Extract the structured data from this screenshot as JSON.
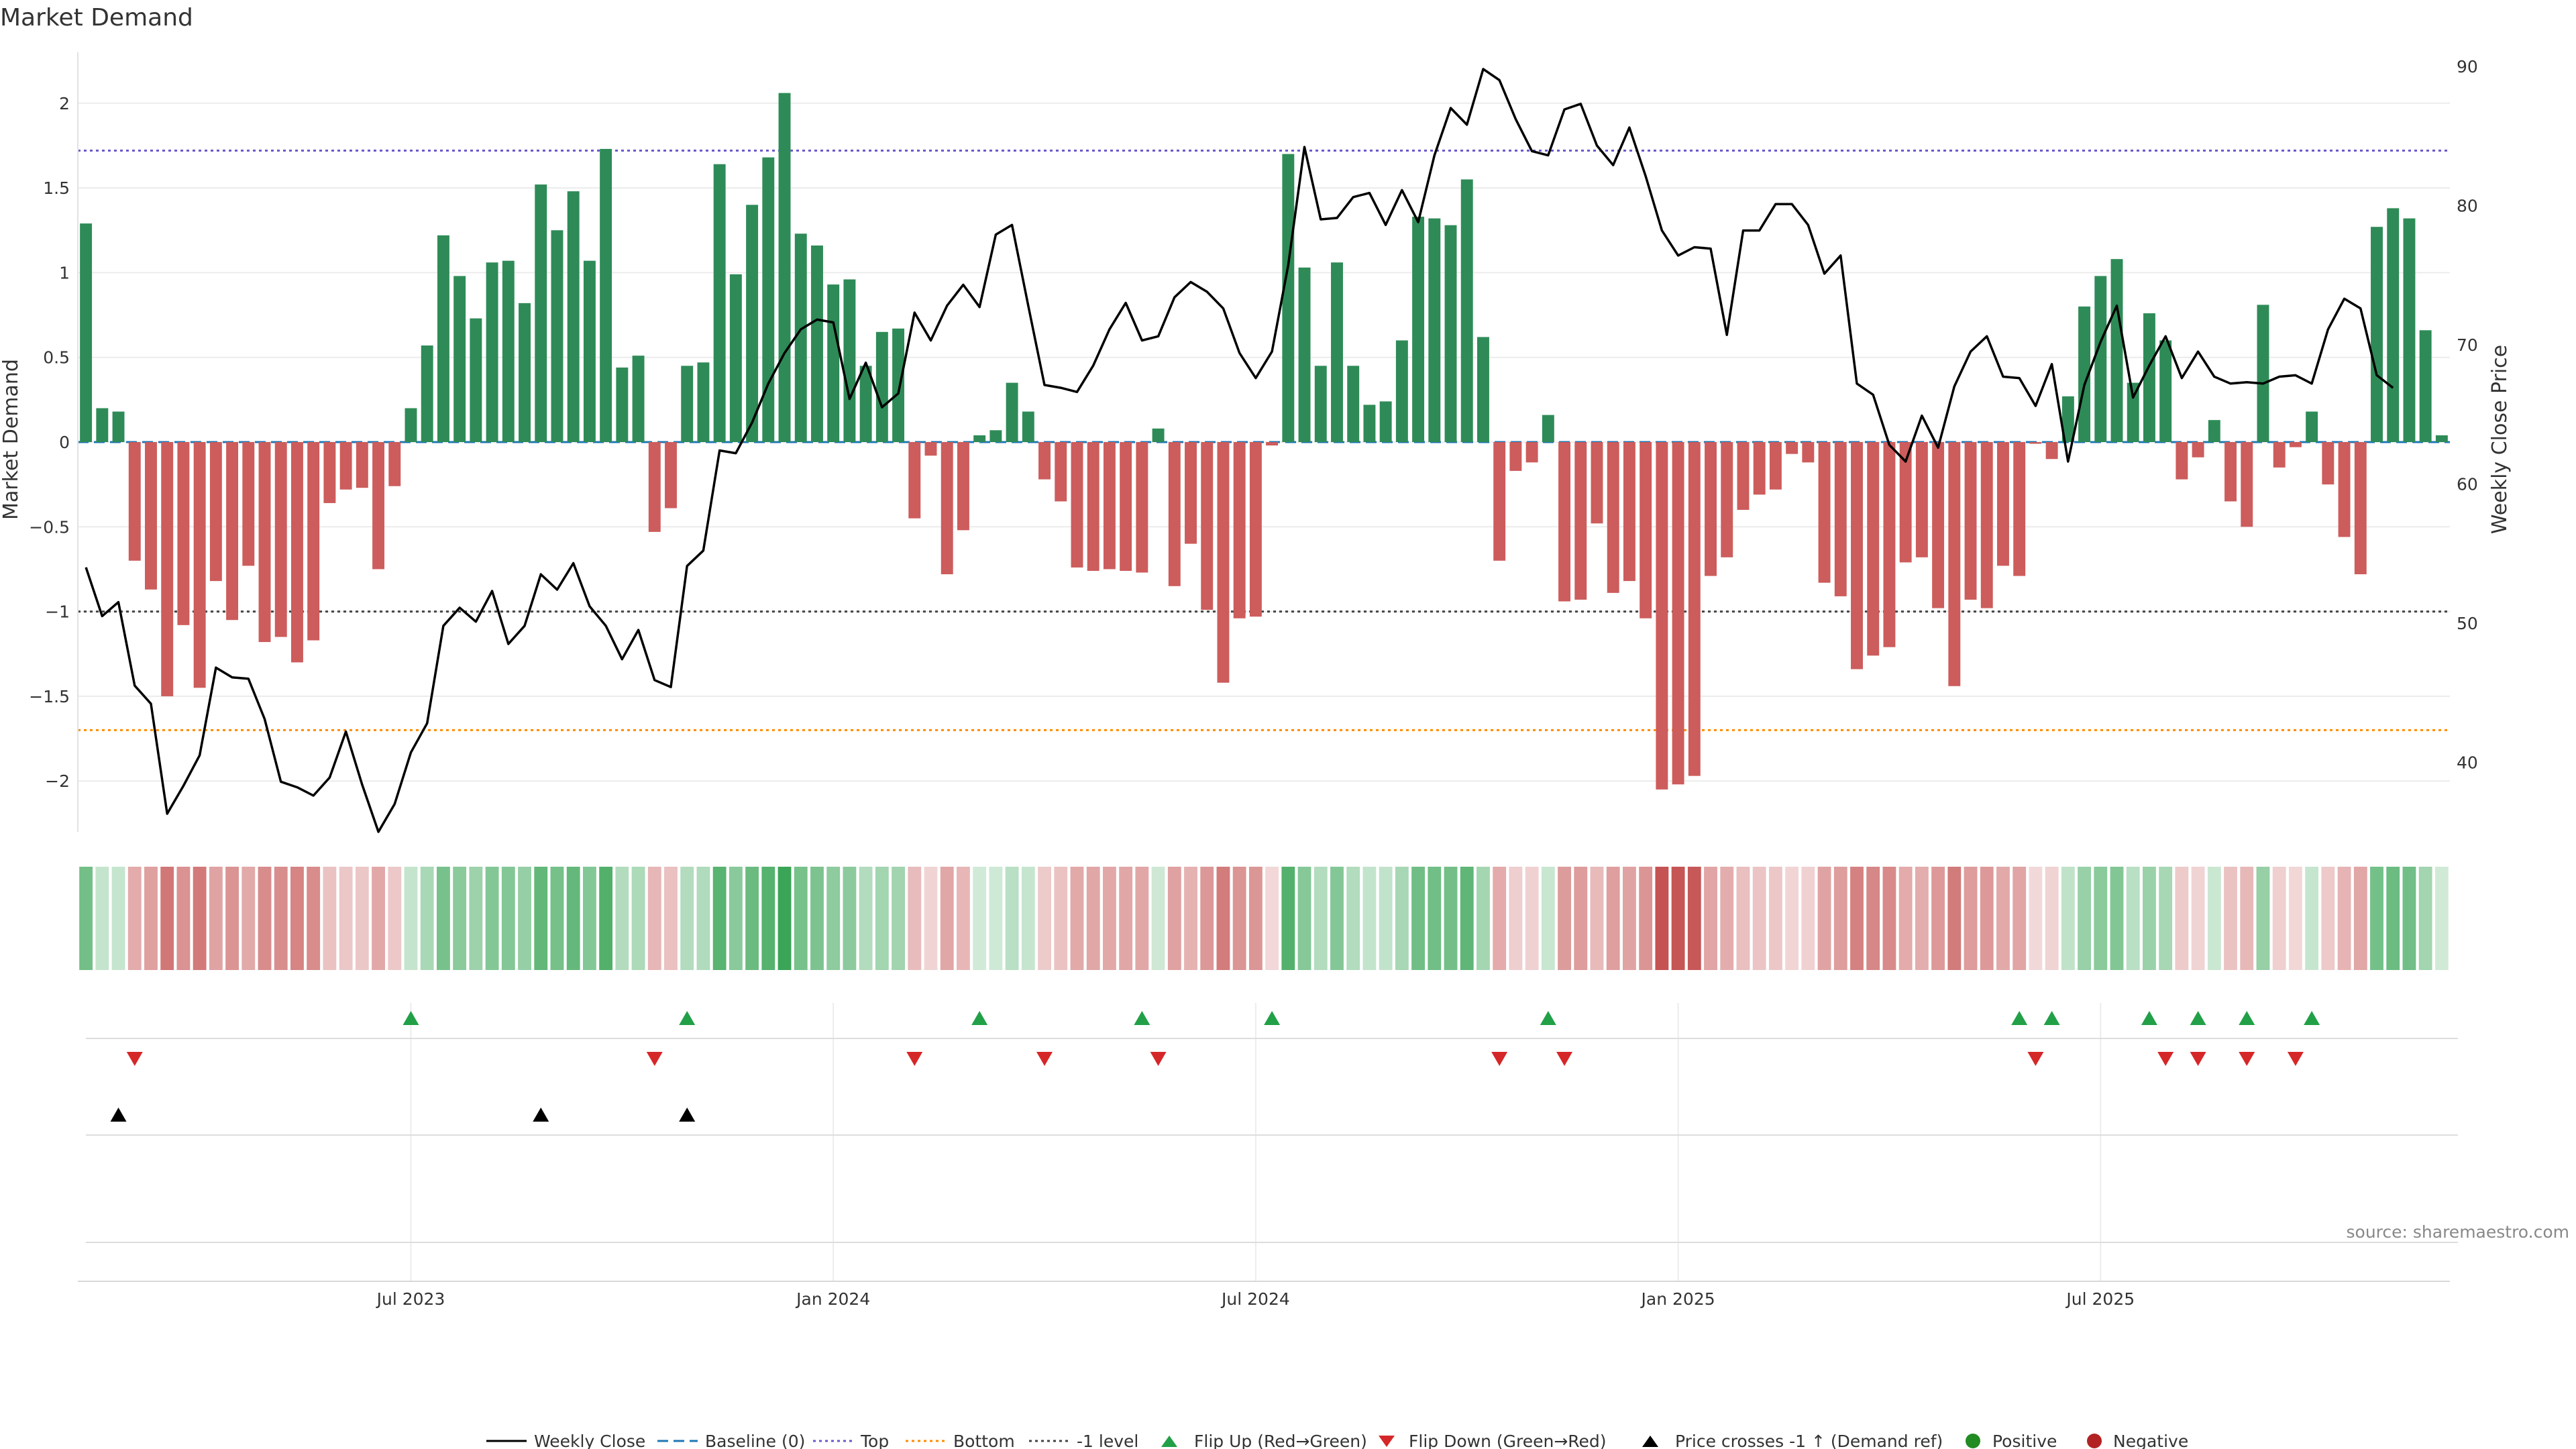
{
  "chart_data": {
    "type": "bar",
    "title": "Market Demand",
    "ylabel": "Market Demand",
    "y2label": "Weekly Close Price",
    "ylim": [
      -2.3,
      2.3
    ],
    "yticks": [
      -2,
      -1.5,
      -1,
      -0.5,
      0,
      0.5,
      1,
      1.5,
      2
    ],
    "y2lim": [
      35,
      91
    ],
    "y2ticks": [
      40,
      50,
      60,
      70,
      80,
      90
    ],
    "x_ticks": [
      {
        "label": "Jul 2023",
        "week": 20.5
      },
      {
        "label": "Jan 2024",
        "week": 46.5
      },
      {
        "label": "Jul 2024",
        "week": 72.5
      },
      {
        "label": "Jan 2025",
        "week": 98.5
      },
      {
        "label": "Jul 2025",
        "week": 124.5
      }
    ],
    "reference_lines": {
      "baseline": 0,
      "top": 1.72,
      "bottom": -1.7,
      "minus_one": -1.0
    },
    "demand": [
      1.29,
      0.2,
      0.18,
      -0.7,
      -0.87,
      -1.5,
      -1.08,
      -1.45,
      -0.82,
      -1.05,
      -0.73,
      -1.18,
      -1.15,
      -1.3,
      -1.17,
      -0.36,
      -0.28,
      -0.27,
      -0.75,
      -0.26,
      0.2,
      0.57,
      1.22,
      0.98,
      0.73,
      1.06,
      1.07,
      0.82,
      1.52,
      1.25,
      1.48,
      1.07,
      1.73,
      0.44,
      0.51,
      -0.53,
      -0.39,
      0.45,
      0.47,
      1.64,
      0.99,
      1.4,
      1.68,
      2.06,
      1.23,
      1.16,
      0.93,
      0.96,
      0.45,
      0.65,
      0.67,
      -0.45,
      -0.08,
      -0.78,
      -0.52,
      0.04,
      0.07,
      0.35,
      0.18,
      -0.22,
      -0.35,
      -0.74,
      -0.76,
      -0.75,
      -0.76,
      -0.77,
      0.08,
      -0.85,
      -0.6,
      -0.99,
      -1.42,
      -1.04,
      -1.03,
      -0.02,
      1.7,
      1.03,
      0.45,
      1.06,
      0.45,
      0.22,
      0.24,
      0.6,
      1.33,
      1.32,
      1.28,
      1.55,
      0.62,
      -0.7,
      -0.17,
      -0.12,
      0.16,
      -0.94,
      -0.93,
      -0.48,
      -0.89,
      -0.82,
      -1.04,
      -2.05,
      -2.02,
      -1.97,
      -0.79,
      -0.68,
      -0.4,
      -0.31,
      -0.28,
      -0.07,
      -0.12,
      -0.83,
      -0.91,
      -1.34,
      -1.26,
      -1.21,
      -0.71,
      -0.68,
      -0.98,
      -1.44,
      -0.93,
      -0.98,
      -0.73,
      -0.79,
      -0.01,
      -0.1,
      0.27,
      0.8,
      0.98,
      1.08,
      0.35,
      0.76,
      0.6,
      -0.22,
      -0.09,
      0.13,
      -0.35,
      -0.5,
      0.81,
      -0.15,
      -0.03,
      0.18,
      -0.25,
      -0.56,
      -0.78,
      1.27,
      1.38,
      1.32,
      0.66,
      0.04
    ],
    "weekly_close": [
      54,
      50.5,
      51.5,
      45.5,
      44.2,
      36.3,
      38.3,
      40.5,
      46.8,
      46.1,
      46,
      43.1,
      38.6,
      38.2,
      37.6,
      38.9,
      42.2,
      38.4,
      35,
      37,
      40.7,
      42.8,
      49.8,
      51.1,
      50.1,
      52.3,
      48.5,
      49.8,
      53.5,
      52.4,
      54.3,
      51.2,
      49.8,
      47.4,
      49.5,
      45.9,
      45.4,
      54.1,
      55.2,
      62.4,
      62.2,
      64.4,
      67.2,
      69.4,
      71.1,
      71.8,
      71.6,
      66.1,
      68.7,
      65.5,
      66.5,
      72.3,
      70.3,
      72.8,
      74.3,
      72.7,
      77.9,
      78.6,
      72.8,
      67.1,
      66.9,
      66.6,
      68.5,
      71.1,
      73,
      70.3,
      70.6,
      73.4,
      74.5,
      73.8,
      72.6,
      69.4,
      67.6,
      69.5,
      75.7,
      84.2,
      79,
      79.1,
      80.6,
      80.9,
      78.6,
      81.1,
      78.8,
      83.6,
      87,
      85.8,
      89.8,
      89,
      86.2,
      83.9,
      83.6,
      86.9,
      87.3,
      84.3,
      82.9,
      85.6,
      82.1,
      78.2,
      76.4,
      77,
      76.9,
      70.7,
      78.2,
      78.2,
      80.1,
      80.1,
      78.6,
      75.1,
      76.4,
      67.2,
      66.4,
      62.8,
      61.6,
      64.9,
      62.6,
      67,
      69.5,
      70.6,
      67.7,
      67.6,
      65.6,
      68.6,
      61.6,
      67.1,
      70.2,
      72.8,
      66.2,
      68.5,
      70.6,
      67.6,
      69.5,
      67.7,
      67.2,
      67.3,
      67.2,
      67.7,
      67.8,
      67.2,
      71.1,
      73.3,
      72.6,
      67.8,
      66.9
    ]
  },
  "markers": {
    "flip_up_weeks": [
      20,
      37,
      55,
      65,
      73,
      90,
      119,
      121,
      127,
      130,
      133,
      137
    ],
    "flip_down_weeks": [
      3,
      35,
      51,
      59,
      66,
      87,
      91,
      120,
      128,
      130,
      133,
      136
    ],
    "price_cross_weeks": [
      2,
      28,
      37
    ]
  },
  "colors": {
    "positive": "#2e8b57",
    "negative": "#cd5c5c",
    "price_line": "#000000",
    "baseline": "#1f77b4",
    "top": "#6a5acd",
    "bottom": "#ff8c00",
    "minus_one": "#444444",
    "flip_up": "#22a047",
    "flip_down": "#d62728",
    "price_cross": "#000000",
    "legend_positive": "#228b22",
    "legend_negative": "#b22222"
  },
  "legend": {
    "weekly_close": "Weekly Close",
    "baseline": "Baseline (0)",
    "top": "Top",
    "bottom": "Bottom",
    "minus_one": "-1 level",
    "flip_up": "Flip Up (Red→Green)",
    "flip_down": "Flip Down (Green→Red)",
    "price_cross": "Price crosses -1 ↑ (Demand ref)",
    "positive": "Positive",
    "negative": "Negative"
  },
  "source": "source: sharemaestro.com"
}
